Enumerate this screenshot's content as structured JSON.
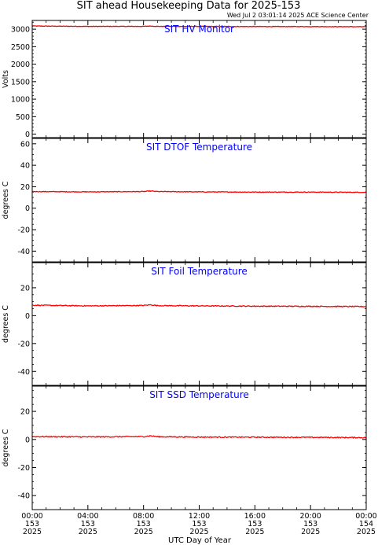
{
  "page": {
    "title": "SIT ahead Housekeeping Data for 2025-153",
    "timestamp": "Wed Jul  2 03:01:14 2025 ACE Science Center",
    "xlabel": "UTC Day of Year"
  },
  "colors": {
    "data_line": "#ff0000",
    "panel_title": "#0000ff",
    "axes": "#000000"
  },
  "chart_data": [
    {
      "type": "line",
      "title": "SIT HV Monitor",
      "ylabel": "Volts",
      "ylim": [
        -100,
        3250
      ],
      "yticks": [
        0,
        500,
        1000,
        1500,
        2000,
        2500,
        3000
      ],
      "yminor_step": 100,
      "x": [
        0,
        4,
        8,
        8.5,
        9,
        12,
        16,
        20,
        24
      ],
      "values": [
        3090,
        3080,
        3080,
        3090,
        3080,
        3080,
        3075,
        3075,
        3070
      ],
      "noise": 15,
      "grid": false
    },
    {
      "type": "line",
      "title": "SIT DTOF Temperature",
      "ylabel": "degrees C",
      "ylim": [
        -50,
        65
      ],
      "yticks": [
        -40,
        -20,
        0,
        20,
        40,
        60
      ],
      "yminor_step": 5,
      "x": [
        0,
        4,
        8,
        8.5,
        9,
        12,
        16,
        20,
        24
      ],
      "values": [
        15.5,
        15.2,
        15.5,
        16.0,
        15.5,
        15.2,
        15.0,
        15.0,
        14.8
      ],
      "noise": 0.6,
      "grid": false
    },
    {
      "type": "line",
      "title": "SIT Foil Temperature",
      "ylabel": "degrees C",
      "ylim": [
        -50,
        38
      ],
      "yticks": [
        -40,
        -20,
        0,
        20
      ],
      "yminor_step": 5,
      "x": [
        0,
        4,
        8,
        8.5,
        9,
        12,
        16,
        20,
        24
      ],
      "values": [
        7.5,
        7.0,
        7.3,
        7.8,
        7.2,
        7.0,
        6.8,
        6.7,
        6.5
      ],
      "noise": 0.6,
      "grid": false
    },
    {
      "type": "line",
      "title": "SIT SSD Temperature",
      "ylabel": "degrees C",
      "ylim": [
        -50,
        38
      ],
      "yticks": [
        -40,
        -20,
        0,
        20
      ],
      "yminor_step": 5,
      "x": [
        0,
        4,
        8,
        8.5,
        9,
        12,
        16,
        20,
        24
      ],
      "values": [
        2.0,
        1.8,
        2.0,
        2.6,
        1.9,
        1.7,
        1.6,
        1.5,
        1.3
      ],
      "noise": 0.7,
      "grid": false
    }
  ],
  "xaxis": {
    "xlim": [
      0,
      24
    ],
    "ticks": [
      {
        "x": 0,
        "time": "00:00",
        "doy": "153",
        "year": "2025"
      },
      {
        "x": 4,
        "time": "04:00",
        "doy": "153",
        "year": "2025"
      },
      {
        "x": 8,
        "time": "08:00",
        "doy": "153",
        "year": "2025"
      },
      {
        "x": 12,
        "time": "12:00",
        "doy": "153",
        "year": "2025"
      },
      {
        "x": 16,
        "time": "16:00",
        "doy": "153",
        "year": "2025"
      },
      {
        "x": 20,
        "time": "20:00",
        "doy": "153",
        "year": "2025"
      },
      {
        "x": 24,
        "time": "00:00",
        "doy": "154",
        "year": "2025"
      }
    ]
  }
}
